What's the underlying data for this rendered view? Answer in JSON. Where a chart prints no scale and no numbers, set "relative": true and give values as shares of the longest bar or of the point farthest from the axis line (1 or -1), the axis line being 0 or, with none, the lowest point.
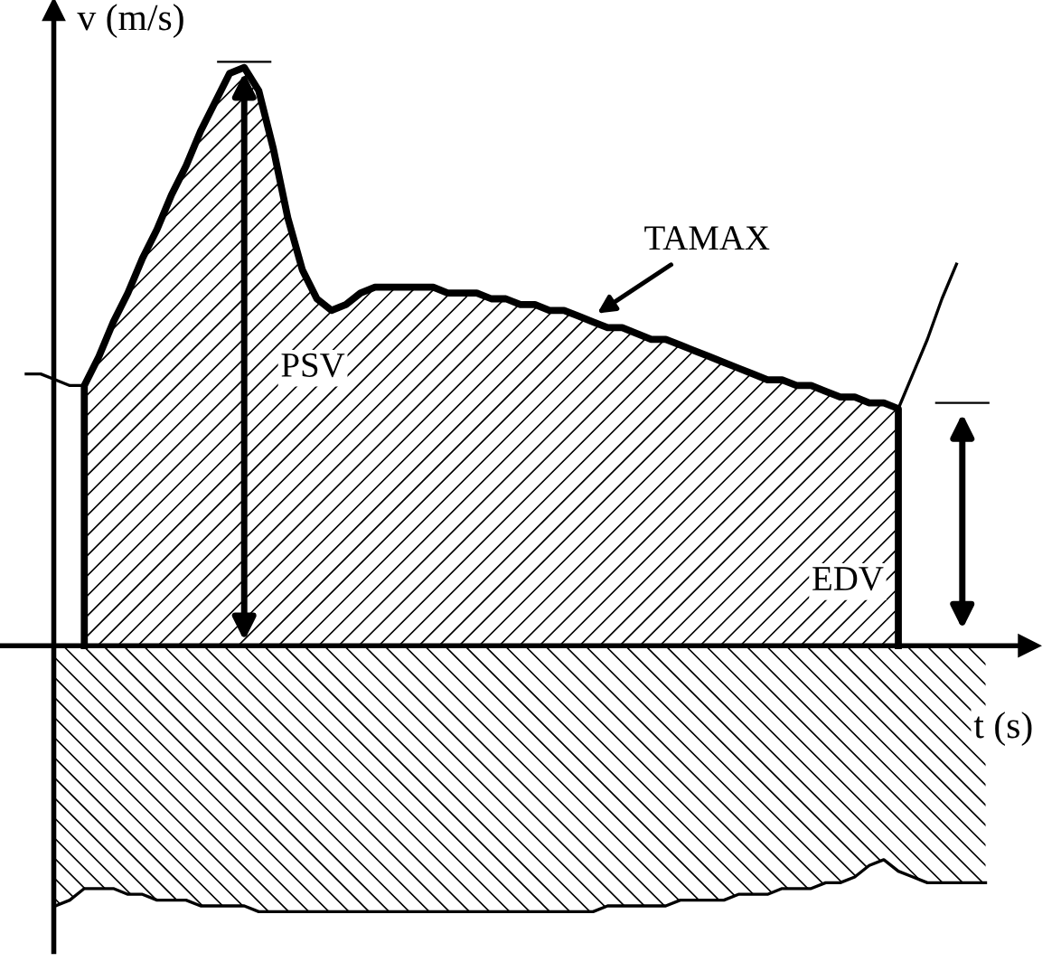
{
  "chart_data": {
    "type": "area",
    "relative": true,
    "xlabel": "t (s)",
    "ylabel": "v (m/s)",
    "categories": [
      null,
      null,
      null,
      null,
      null,
      null,
      null,
      null,
      null,
      null,
      null,
      null,
      null,
      null,
      null,
      null,
      null,
      null,
      null,
      null,
      null,
      null,
      null,
      null,
      null,
      null,
      null,
      null,
      null,
      null,
      null,
      null,
      null,
      null,
      null,
      null,
      null,
      null,
      null,
      null,
      null,
      null,
      null,
      null,
      null,
      null,
      null,
      null,
      null,
      null,
      null,
      null,
      null,
      null,
      null,
      null,
      null,
      null,
      null,
      null,
      null,
      null,
      null,
      null,
      null,
      null,
      null
    ],
    "annotations": [
      "PSV",
      "TAMAX",
      "EDV"
    ],
    "series": [
      {
        "color": "#000000",
        "values": [
          null,
          null,
          null,
          null,
          0.45,
          0.5,
          0.56,
          0.61,
          0.67,
          0.72,
          0.78,
          0.83,
          0.89,
          0.94,
          0.99,
          1.0,
          0.96,
          0.86,
          0.74,
          0.65,
          0.6,
          0.58,
          0.59,
          0.61,
          0.62,
          0.62,
          0.62,
          0.62,
          0.62,
          0.61,
          0.61,
          0.61,
          0.6,
          0.6,
          0.59,
          0.59,
          0.58,
          0.58,
          0.57,
          0.56,
          0.55,
          0.55,
          0.54,
          0.53,
          0.53,
          0.52,
          0.51,
          0.5,
          0.49,
          0.48,
          0.47,
          0.46,
          0.46,
          0.45,
          0.45,
          0.44,
          0.43,
          0.43,
          0.42,
          0.42,
          0.41,
          null,
          null,
          null,
          null,
          null,
          null
        ]
      },
      {
        "type": "line",
        "color": "#000000",
        "values": [
          0.47,
          0.47,
          0.46,
          0.45,
          0.45,
          null,
          null,
          null,
          null,
          null,
          null,
          null,
          null,
          null,
          null,
          null,
          null,
          null,
          null,
          null,
          null,
          null,
          null,
          null,
          null,
          null,
          null,
          null,
          null,
          null,
          null,
          null,
          null,
          null,
          null,
          null,
          null,
          null,
          null,
          null,
          null,
          null,
          null,
          null,
          null,
          null,
          null,
          null,
          null,
          null,
          null,
          null,
          null,
          null,
          null,
          null,
          null,
          null,
          null,
          null,
          null,
          null,
          null,
          null,
          null,
          null,
          null
        ]
      },
      {
        "type": "line",
        "color": "#000000",
        "values": [
          null,
          null,
          null,
          null,
          null,
          null,
          null,
          null,
          null,
          null,
          null,
          null,
          null,
          null,
          null,
          null,
          null,
          null,
          null,
          null,
          null,
          null,
          null,
          null,
          null,
          null,
          null,
          null,
          null,
          null,
          null,
          null,
          null,
          null,
          null,
          null,
          null,
          null,
          null,
          null,
          null,
          null,
          null,
          null,
          null,
          null,
          null,
          null,
          null,
          null,
          null,
          null,
          null,
          null,
          null,
          null,
          null,
          null,
          null,
          null,
          0.41,
          0.47,
          0.53,
          0.6,
          0.66,
          null,
          null
        ]
      },
      {
        "type": "area",
        "color": "#000000",
        "values": [
          null,
          null,
          -0.45,
          -0.44,
          -0.42,
          -0.42,
          -0.42,
          -0.43,
          -0.43,
          -0.44,
          -0.44,
          -0.44,
          -0.45,
          -0.45,
          -0.45,
          -0.45,
          -0.46,
          -0.46,
          -0.46,
          -0.46,
          -0.46,
          -0.46,
          -0.46,
          -0.46,
          -0.46,
          -0.46,
          -0.46,
          -0.46,
          -0.46,
          -0.46,
          -0.46,
          -0.46,
          -0.46,
          -0.46,
          -0.46,
          -0.46,
          -0.46,
          -0.46,
          -0.46,
          -0.46,
          -0.45,
          -0.45,
          -0.45,
          -0.45,
          -0.45,
          -0.44,
          -0.44,
          -0.44,
          -0.44,
          -0.43,
          -0.43,
          -0.43,
          -0.42,
          -0.42,
          -0.42,
          -0.41,
          -0.41,
          -0.4,
          -0.38,
          -0.37,
          -0.39,
          -0.4,
          -0.41,
          -0.41,
          -0.41,
          -0.41,
          -0.41
        ]
      }
    ]
  }
}
